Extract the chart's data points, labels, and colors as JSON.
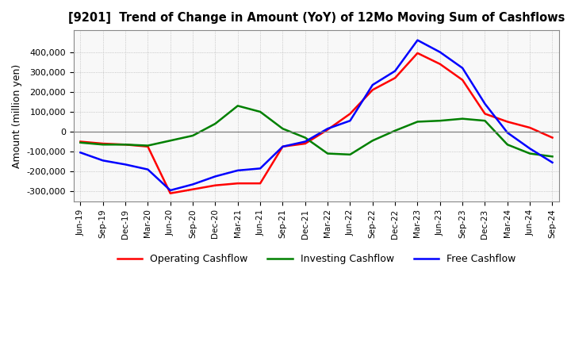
{
  "title": "[9201]  Trend of Change in Amount (YoY) of 12Mo Moving Sum of Cashflows",
  "ylabel": "Amount (million yen)",
  "x_labels": [
    "Jun-19",
    "Sep-19",
    "Dec-19",
    "Mar-20",
    "Jun-20",
    "Sep-20",
    "Dec-20",
    "Mar-21",
    "Jun-21",
    "Sep-21",
    "Dec-21",
    "Mar-22",
    "Jun-22",
    "Sep-22",
    "Dec-22",
    "Mar-23",
    "Jun-23",
    "Sep-23",
    "Dec-23",
    "Mar-24",
    "Jun-24",
    "Sep-24"
  ],
  "operating": [
    -50000,
    -60000,
    -65000,
    -75000,
    -310000,
    -290000,
    -270000,
    -260000,
    -260000,
    -75000,
    -60000,
    10000,
    90000,
    210000,
    270000,
    395000,
    340000,
    260000,
    90000,
    50000,
    20000,
    -30000
  ],
  "investing": [
    -55000,
    -65000,
    -65000,
    -70000,
    -45000,
    -20000,
    40000,
    130000,
    100000,
    15000,
    -30000,
    -110000,
    -115000,
    -45000,
    5000,
    50000,
    55000,
    65000,
    55000,
    -65000,
    -110000,
    -125000
  ],
  "free": [
    -105000,
    -145000,
    -165000,
    -190000,
    -295000,
    -265000,
    -225000,
    -195000,
    -185000,
    -75000,
    -50000,
    15000,
    55000,
    235000,
    305000,
    460000,
    400000,
    320000,
    140000,
    -5000,
    -85000,
    -155000
  ],
  "ylim": [
    -350000,
    510000
  ],
  "yticks": [
    -300000,
    -200000,
    -100000,
    0,
    100000,
    200000,
    300000,
    400000
  ],
  "operating_color": "#ff0000",
  "investing_color": "#008000",
  "free_color": "#0000ff",
  "bg_color": "#ffffff",
  "plot_bg_color": "#f8f8f8",
  "grid_color": "#aaaaaa"
}
